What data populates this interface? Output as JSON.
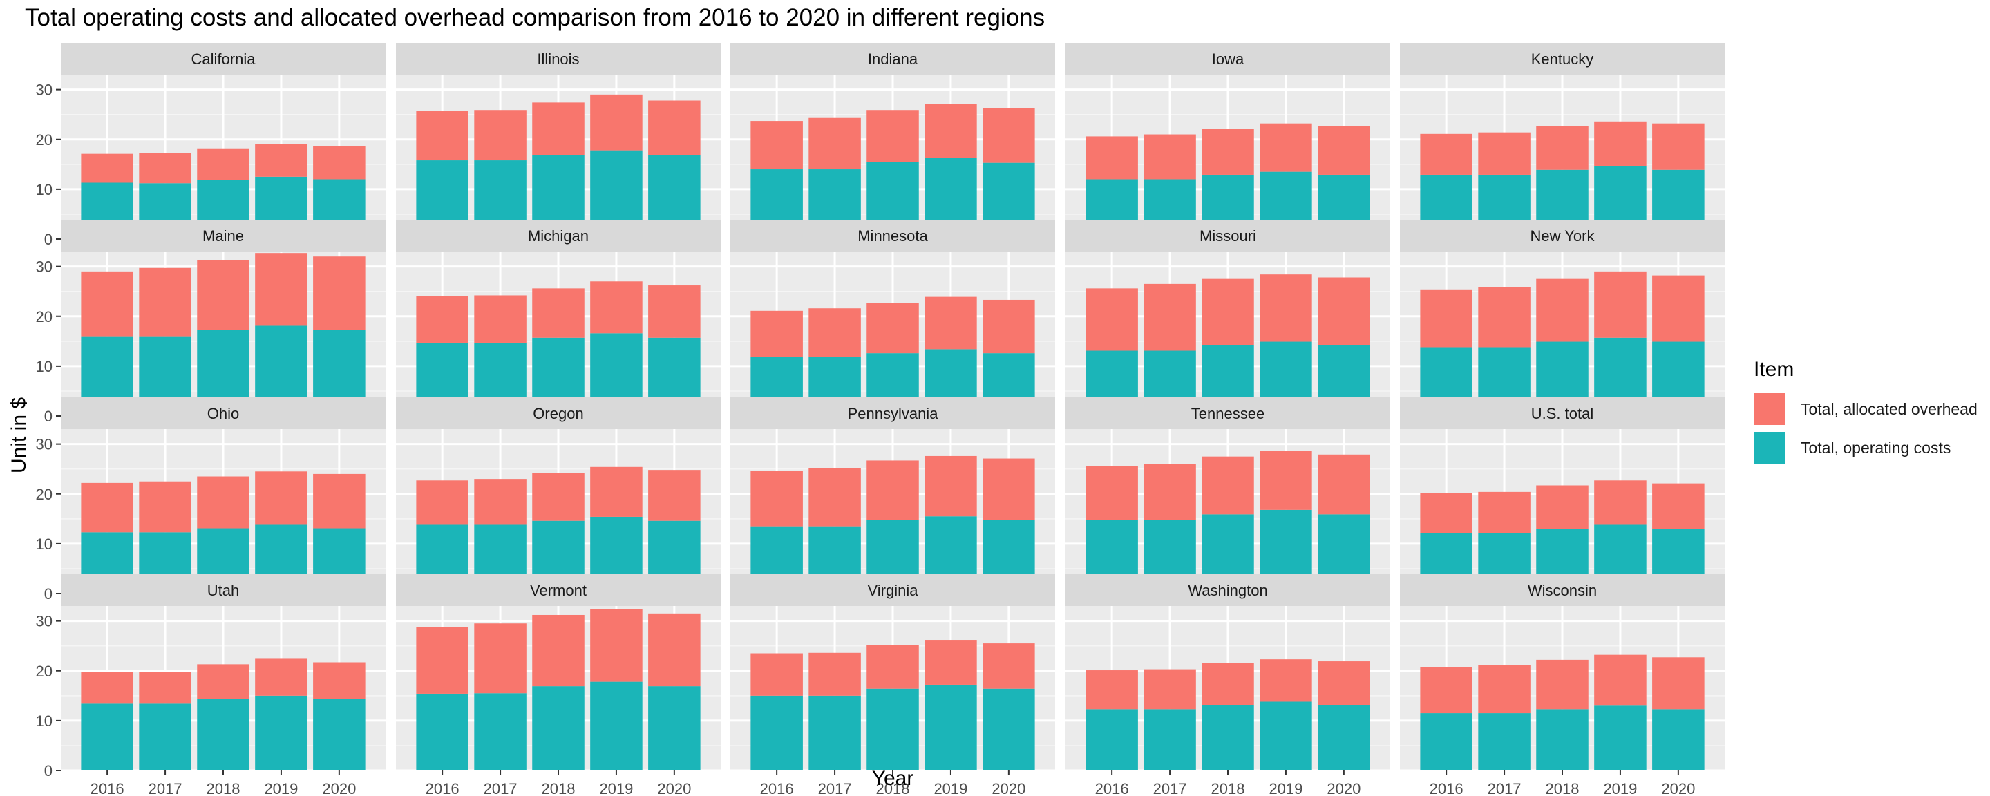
{
  "chart_data": {
    "type": "bar",
    "stacked": true,
    "faceted": true,
    "title": "Total operating costs and allocated overhead comparison from 2016 to 2020 in different regions",
    "xlabel": "Year",
    "ylabel": "Unit in $",
    "categories": [
      "2016",
      "2017",
      "2018",
      "2019",
      "2020"
    ],
    "ylim": [
      0,
      33
    ],
    "y_ticks": [
      0,
      10,
      20,
      30
    ],
    "grid": true,
    "legend": {
      "title": "Item",
      "position": "right",
      "entries": [
        {
          "label": "Total, allocated overhead",
          "color": "#f8766d"
        },
        {
          "label": "Total, operating costs",
          "color": "#1bb5b8"
        }
      ]
    },
    "series_names": [
      "Total, operating costs",
      "Total, allocated overhead"
    ],
    "panels": [
      {
        "region": "California",
        "operating": [
          11.3,
          11.2,
          11.8,
          12.5,
          12.0
        ],
        "overhead": [
          5.8,
          6.0,
          6.4,
          6.5,
          6.6
        ]
      },
      {
        "region": "Illinois",
        "operating": [
          15.8,
          15.8,
          16.8,
          17.8,
          16.8
        ],
        "overhead": [
          9.9,
          10.1,
          10.6,
          11.2,
          11.0
        ]
      },
      {
        "region": "Indiana",
        "operating": [
          14.0,
          14.0,
          15.5,
          16.3,
          15.3
        ],
        "overhead": [
          9.7,
          10.3,
          10.4,
          10.8,
          11.0
        ]
      },
      {
        "region": "Iowa",
        "operating": [
          12.0,
          12.0,
          12.9,
          13.5,
          12.9
        ],
        "overhead": [
          8.6,
          9.0,
          9.2,
          9.7,
          9.8
        ]
      },
      {
        "region": "Kentucky",
        "operating": [
          12.9,
          12.9,
          13.9,
          14.7,
          13.9
        ],
        "overhead": [
          8.2,
          8.5,
          8.8,
          8.9,
          9.3
        ]
      },
      {
        "region": "Maine",
        "operating": [
          16.0,
          16.0,
          17.2,
          18.1,
          17.2
        ],
        "overhead": [
          13.0,
          13.7,
          14.1,
          14.6,
          14.8
        ]
      },
      {
        "region": "Michigan",
        "operating": [
          14.7,
          14.7,
          15.7,
          16.6,
          15.7
        ],
        "overhead": [
          9.3,
          9.5,
          9.9,
          10.4,
          10.5
        ]
      },
      {
        "region": "Minnesota",
        "operating": [
          11.8,
          11.8,
          12.6,
          13.4,
          12.6
        ],
        "overhead": [
          9.3,
          9.8,
          10.1,
          10.5,
          10.7
        ]
      },
      {
        "region": "Missouri",
        "operating": [
          13.1,
          13.1,
          14.2,
          14.9,
          14.2
        ],
        "overhead": [
          12.5,
          13.4,
          13.3,
          13.5,
          13.6
        ]
      },
      {
        "region": "New York",
        "operating": [
          13.8,
          13.8,
          14.9,
          15.7,
          14.9
        ],
        "overhead": [
          11.6,
          12.0,
          12.6,
          13.3,
          13.3
        ]
      },
      {
        "region": "Ohio",
        "operating": [
          12.3,
          12.3,
          13.1,
          13.8,
          13.1
        ],
        "overhead": [
          9.9,
          10.2,
          10.4,
          10.7,
          10.9
        ]
      },
      {
        "region": "Oregon",
        "operating": [
          13.8,
          13.8,
          14.6,
          15.4,
          14.6
        ],
        "overhead": [
          8.9,
          9.2,
          9.6,
          10.0,
          10.2
        ]
      },
      {
        "region": "Pennsylvania",
        "operating": [
          13.5,
          13.5,
          14.8,
          15.5,
          14.8
        ],
        "overhead": [
          11.1,
          11.7,
          11.9,
          12.1,
          12.3
        ]
      },
      {
        "region": "Tennessee",
        "operating": [
          14.8,
          14.8,
          15.9,
          16.8,
          15.9
        ],
        "overhead": [
          10.8,
          11.2,
          11.6,
          11.8,
          12.0
        ]
      },
      {
        "region": "U.S. total",
        "operating": [
          12.1,
          12.1,
          13.0,
          13.8,
          13.0
        ],
        "overhead": [
          8.1,
          8.3,
          8.7,
          8.9,
          9.1
        ]
      },
      {
        "region": "Utah",
        "operating": [
          13.4,
          13.4,
          14.3,
          15.0,
          14.3
        ],
        "overhead": [
          6.3,
          6.4,
          7.0,
          7.4,
          7.4
        ]
      },
      {
        "region": "Vermont",
        "operating": [
          15.4,
          15.5,
          16.9,
          17.8,
          16.9
        ],
        "overhead": [
          13.4,
          14.0,
          14.3,
          14.6,
          14.6
        ]
      },
      {
        "region": "Virginia",
        "operating": [
          15.0,
          15.0,
          16.4,
          17.2,
          16.4
        ],
        "overhead": [
          8.5,
          8.6,
          8.8,
          9.0,
          9.1
        ]
      },
      {
        "region": "Washington",
        "operating": [
          12.3,
          12.3,
          13.1,
          13.8,
          13.1
        ],
        "overhead": [
          7.8,
          8.0,
          8.4,
          8.5,
          8.8
        ]
      },
      {
        "region": "Wisconsin",
        "operating": [
          11.5,
          11.5,
          12.3,
          13.0,
          12.3
        ],
        "overhead": [
          9.2,
          9.6,
          9.9,
          10.2,
          10.4
        ]
      }
    ]
  }
}
